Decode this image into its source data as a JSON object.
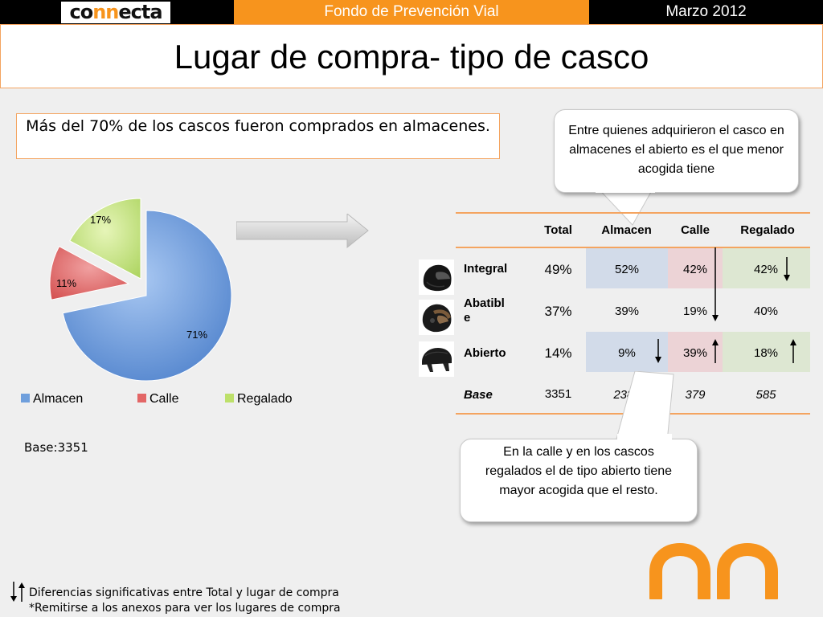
{
  "header": {
    "logo_prefix": "co",
    "logo_nn": "nn",
    "logo_suffix": "ecta",
    "program": "Fondo de Prevención Vial",
    "date": "Marzo 2012"
  },
  "title": "Lugar de compra- tipo de casco",
  "headline": "Más del  70% de los cascos fueron comprados en almacenes.",
  "pie": {
    "labels": [
      "71%",
      "11%",
      "17%"
    ],
    "legend": [
      "Almacen",
      "Calle",
      "Regalado"
    ],
    "base": "Base:3351"
  },
  "chart_data": {
    "type": "pie",
    "categories": [
      "Almacen",
      "Calle",
      "Regalado"
    ],
    "values": [
      71,
      11,
      17
    ],
    "colors": [
      "#6f9fdc",
      "#e36666",
      "#bde06a"
    ]
  },
  "callouts": {
    "top": "Entre quienes adquirieron el casco en almacenes el abierto es el que menor acogida tiene",
    "bottom": "En la calle  y en los cascos regalados el de tipo  abierto tiene mayor acogida que el resto."
  },
  "table": {
    "columns": [
      "Total",
      "Almacen",
      "Calle",
      "Regalado"
    ],
    "rows": [
      {
        "label": "Integral",
        "icon": "full-face-helmet-icon",
        "total": "49%",
        "almacen": "52%",
        "calle": "42%",
        "regalado": "42%"
      },
      {
        "label": "Abatibl e",
        "icon": "flip-up-helmet-icon",
        "total": "37%",
        "almacen": "39%",
        "calle": "19%",
        "regalado": "40%"
      },
      {
        "label": "Abierto",
        "icon": "open-face-helmet-icon",
        "total": "14%",
        "almacen": "9%",
        "calle": "39%",
        "regalado": "18%"
      },
      {
        "label": "Base",
        "total": "3351",
        "almacen": "2387",
        "calle": "379",
        "regalado": "585"
      }
    ]
  },
  "footer": {
    "note1": "Diferencias significativas entre Total y lugar de compra",
    "note2": "*Remitirse a los anexos para ver los lugares de compra"
  },
  "colors": {
    "accent_orange": "#f7941d",
    "almacen_band": "#d2dbe9",
    "calle_band": "#ecd3d6",
    "regalado_band": "#dde7d2"
  }
}
